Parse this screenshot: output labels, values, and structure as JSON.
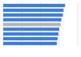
{
  "chart_data": {
    "type": "bar",
    "orientation": "horizontal",
    "categories": [
      null,
      null,
      null,
      null,
      null,
      null,
      null,
      null,
      null
    ],
    "values": [
      83,
      81,
      80,
      78,
      77,
      75,
      74,
      73,
      72
    ],
    "colors": [
      "#3b7dd8",
      "#3b7dd8",
      "#3b7dd8",
      "#3b7dd8",
      "#b4b4b4",
      "#3b7dd8",
      "#3b7dd8",
      "#3b7dd8",
      "#3b7dd8"
    ],
    "xlim": [
      0,
      100
    ],
    "xticks": [
      0,
      25,
      50,
      75,
      100
    ],
    "grid": true,
    "tick_labels": false
  }
}
